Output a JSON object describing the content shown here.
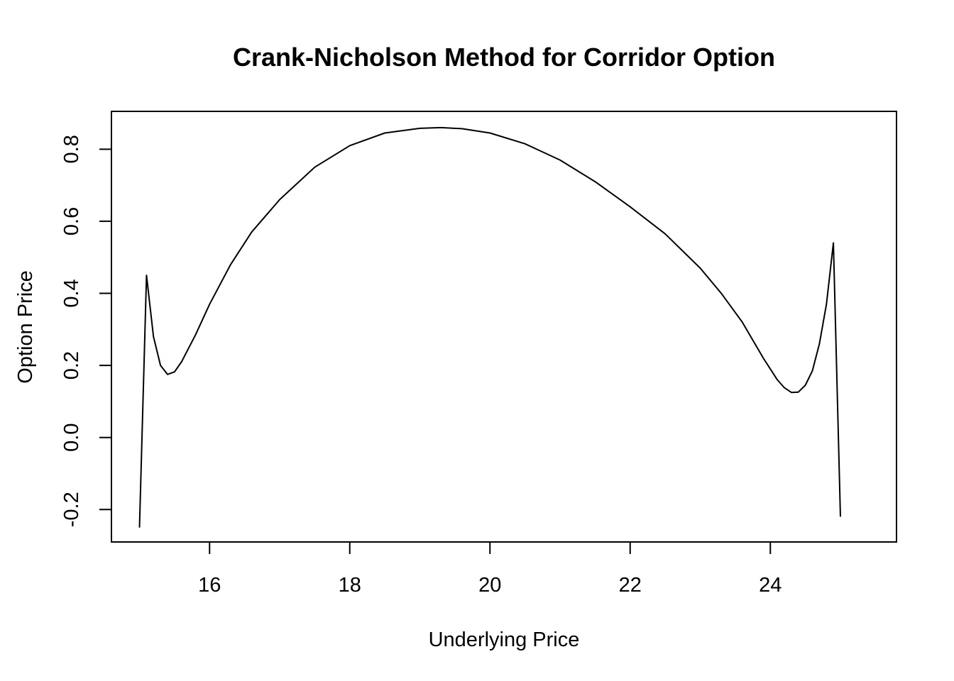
{
  "chart_data": {
    "type": "line",
    "title": "Crank-Nicholson Method for Corridor Option",
    "xlabel": "Underlying Price",
    "ylabel": "Option Price",
    "xlim": [
      14.6,
      25.8
    ],
    "ylim": [
      -0.29,
      0.905
    ],
    "xticks": [
      16,
      18,
      20,
      22,
      24
    ],
    "xtick_labels": [
      "16",
      "18",
      "20",
      "22",
      "24"
    ],
    "yticks": [
      -0.2,
      0.0,
      0.2,
      0.4,
      0.6,
      0.8
    ],
    "ytick_labels": [
      "-0.2",
      "0.0",
      "0.2",
      "0.4",
      "0.6",
      "0.8"
    ],
    "grid": false,
    "legend": "none",
    "series": [
      {
        "color": "#000000",
        "x": [
          15.0,
          15.1,
          15.2,
          15.3,
          15.4,
          15.5,
          15.6,
          15.8,
          16.0,
          16.3,
          16.6,
          17.0,
          17.5,
          18.0,
          18.5,
          19.0,
          19.3,
          19.6,
          20.0,
          20.5,
          21.0,
          21.5,
          22.0,
          22.5,
          23.0,
          23.3,
          23.6,
          23.9,
          24.1,
          24.2,
          24.3,
          24.4,
          24.5,
          24.6,
          24.7,
          24.8,
          24.9,
          25.0
        ],
        "y": [
          -0.25,
          0.45,
          0.28,
          0.2,
          0.175,
          0.182,
          0.21,
          0.285,
          0.37,
          0.48,
          0.57,
          0.66,
          0.75,
          0.81,
          0.845,
          0.858,
          0.86,
          0.857,
          0.845,
          0.815,
          0.77,
          0.71,
          0.64,
          0.565,
          0.47,
          0.4,
          0.32,
          0.22,
          0.16,
          0.138,
          0.125,
          0.126,
          0.145,
          0.185,
          0.26,
          0.37,
          0.54,
          -0.22
        ]
      }
    ]
  }
}
